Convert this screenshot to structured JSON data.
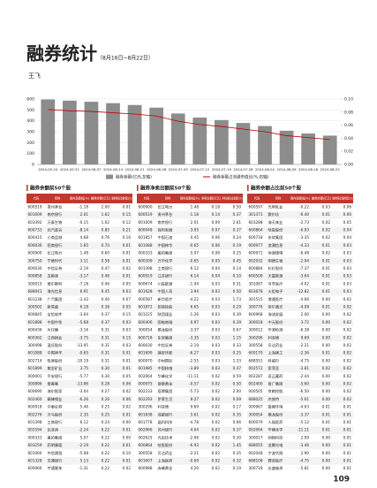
{
  "header": {
    "title": "融券统计",
    "subtitle": "（8月16日~8月22日）",
    "author": "王飞"
  },
  "chart_data": {
    "type": "bar",
    "x": [
      "2024-05-24",
      "2024-05-31",
      "2024-06-07",
      "2024-06-14",
      "2024-06-21",
      "2024-06-28",
      "2024-07-05",
      "2024-07-12",
      "2024-07-19",
      "2024-07-26",
      "2024-08-02",
      "2024-08-09",
      "2024-08-16",
      "2024-08-22"
    ],
    "series": [
      {
        "name": "融券余额(亿元,左轴)",
        "color": "#8c8c8c",
        "values": [
          596,
          585,
          575,
          562,
          545,
          521,
          467,
          430,
          407,
          380,
          352,
          309,
          284,
          264
        ]
      },
      {
        "name": "融券余额占流通市值比(%,右轴)",
        "color": "#c00000",
        "axis": "y2",
        "values": [
          0.084,
          0.082,
          0.081,
          0.079,
          0.077,
          0.074,
          0.066,
          0.061,
          0.058,
          0.054,
          0.05,
          0.044,
          0.041,
          0.038
        ]
      }
    ],
    "ylim": [
      0,
      600
    ],
    "yticks": [
      0,
      100,
      200,
      300,
      400,
      500,
      600
    ],
    "y2lim": [
      0,
      0.1
    ],
    "y2ticks": [
      {
        "value": 0,
        "label": "0.00"
      },
      {
        "value": 0.02,
        "label": "0.02"
      },
      {
        "value": 0.04,
        "label": "0.04"
      },
      {
        "value": 0.06,
        "label": "0.06"
      },
      {
        "value": 0.08,
        "label": "0.08"
      },
      {
        "value": 0.1,
        "label": "0.10"
      }
    ],
    "grid": true
  },
  "tables": [
    {
      "title": "融券余额前50个股",
      "columns": [
        "代码",
        "简称",
        "周内涨跌幅(%)",
        "融券余额(亿元)",
        "融券余额占流通市值比(%)"
      ],
      "rows": [
        [
          "600519",
          "贵州茅台",
          "-1.18",
          "2.00",
          "0.01"
        ],
        [
          "601009",
          "南京银行",
          "2.01",
          "1.62",
          "0.15"
        ],
        [
          "603392",
          "万泰生物",
          "-0.15",
          "1.02",
          "0.12"
        ],
        [
          "600733",
          "北汽蓝谷",
          "-8.14",
          "0.85",
          "0.21"
        ],
        [
          "600415",
          "小商品城",
          "4.68",
          "0.76",
          "0.16"
        ],
        [
          "600036",
          "招商银行",
          "1.65",
          "0.70",
          "0.01"
        ],
        [
          "600900",
          "长江电力",
          "1.48",
          "0.60",
          "0.01"
        ],
        [
          "300750",
          "宁德时代",
          "3.11",
          "0.58",
          "0.01"
        ],
        [
          "600030",
          "中信证券",
          "-2.19",
          "0.47",
          "0.02"
        ],
        [
          "000858",
          "五粮液",
          "-3.17",
          "0.46",
          "0.01"
        ],
        [
          "300015",
          "爱尔眼科",
          "-7.18",
          "0.46",
          "0.05"
        ],
        [
          "688041",
          "海光信息",
          "6.91",
          "0.45",
          "0.03"
        ],
        [
          "601238",
          "广汽集团",
          "-3.43",
          "0.40",
          "0.07"
        ],
        [
          "300502",
          "新易盛",
          "6.18",
          "0.38",
          "0.05"
        ],
        [
          "600845",
          "宝信软件",
          "-3.04",
          "0.37",
          "0.15"
        ],
        [
          "601888",
          "中国中免",
          "-5.68",
          "0.37",
          "0.03"
        ],
        [
          "600436",
          "片仔癀",
          "-3.16",
          "0.31",
          "0.03"
        ],
        [
          "600362",
          "江西铜业",
          "-3.75",
          "0.31",
          "0.15"
        ],
        [
          "300498",
          "温氏股份",
          "-13.95",
          "0.31",
          "0.03"
        ],
        [
          "601088",
          "中国神华",
          "-0.65",
          "0.31",
          "0.01"
        ],
        [
          "002714",
          "牧原股份",
          "-10.19",
          "0.31",
          "0.01"
        ],
        [
          "601899",
          "紫金矿业",
          "3.75",
          "0.30",
          "0.01"
        ],
        [
          "000001",
          "平安银行",
          "-5.77",
          "0.30",
          "0.05"
        ],
        [
          "300896",
          "爱美客",
          "-13.86",
          "0.28",
          "0.06"
        ],
        [
          "600690",
          "海尔智家",
          "-3.04",
          "0.27",
          "0.02"
        ],
        [
          "002460",
          "赣锋锂业",
          "-6.26",
          "0.26",
          "0.06"
        ],
        [
          "600918",
          "中泰证券",
          "5.46",
          "0.25",
          "0.02"
        ],
        [
          "002276",
          "万马股份",
          "2.35",
          "0.25",
          "0.01"
        ],
        [
          "601398",
          "工商银行",
          "6.12",
          "0.24",
          "0.00"
        ],
        [
          "002594",
          "比亚迪",
          "-2.24",
          "0.22",
          "0.01"
        ],
        [
          "000333",
          "美的集团",
          "5.07",
          "0.22",
          "0.00"
        ],
        [
          "603259",
          "药明康德",
          "-2.19",
          "0.22",
          "0.01"
        ],
        [
          "601066",
          "中信建投",
          "-5.08",
          "0.22",
          "0.10"
        ],
        [
          "601328",
          "交通银行",
          "5.13",
          "0.22",
          "0.01"
        ],
        [
          "600066",
          "宇通客车",
          "-1.31",
          "0.22",
          "0.02"
        ]
      ]
    },
    {
      "title": "融券净卖出额前50个股",
      "columns": [
        "代码",
        "简称",
        "周内涨跌幅(%)",
        "净卖出额(亿元)",
        "净卖出额占成交额比(%)"
      ],
      "rows": [
        [
          "600900",
          "长江电力",
          "1.48",
          "0.18",
          "0.50"
        ],
        [
          "600519",
          "贵州茅台",
          "-1.18",
          "0.14",
          "0.37"
        ],
        [
          "601009",
          "南京银行",
          "2.01",
          "0.09",
          "2.61"
        ],
        [
          "600048",
          "保利发展",
          "-3.05",
          "0.07",
          "0.37"
        ],
        [
          "601857",
          "中国石油",
          "0.45",
          "0.06",
          "0.24"
        ],
        [
          "601088",
          "中国神华",
          "-0.65",
          "0.06",
          "0.19"
        ],
        [
          "000333",
          "美的集团",
          "5.07",
          "0.06",
          "0.25"
        ],
        [
          "600309",
          "万华化学",
          "-0.65",
          "0.05",
          "0.45"
        ],
        [
          "601398",
          "工商银行",
          "6.12",
          "0.04",
          "0.14"
        ],
        [
          "600919",
          "江苏银行",
          "6.14",
          "0.04",
          "0.10"
        ],
        [
          "600674",
          "川投能源",
          "-1.94",
          "0.03",
          "0.31"
        ],
        [
          "601628",
          "中国人寿",
          "3.94",
          "0.03",
          "0.50"
        ],
        [
          "600587",
          "新华医疗",
          "-4.22",
          "0.03",
          "1.73"
        ],
        [
          "601872",
          "招商轮船",
          "6.65",
          "0.03",
          "0.29"
        ],
        [
          "601225",
          "陕西煤业",
          "-1.26",
          "0.03",
          "0.39"
        ],
        [
          "600406",
          "国电南瑞",
          "0.97",
          "0.03",
          "0.39"
        ],
        [
          "300054",
          "鼎龙股份",
          "-3.37",
          "0.03",
          "0.67"
        ],
        [
          "600718",
          "东软集团",
          "-3.35",
          "0.03",
          "1.15"
        ],
        [
          "600030",
          "中信证券",
          "-2.19",
          "0.03",
          "0.33"
        ],
        [
          "601699",
          "潞安环能",
          "-6.27",
          "0.03",
          "0.25"
        ],
        [
          "600970",
          "中材国际",
          "-2.55",
          "0.03",
          "1.33"
        ],
        [
          "601985",
          "中国核电",
          "-3.89",
          "0.03",
          "0.47"
        ],
        [
          "002064",
          "华峰化学",
          "-11.11",
          "0.02",
          "0.59"
        ],
        [
          "000975",
          "银泰黄金",
          "-0.57",
          "0.02",
          "0.50"
        ],
        [
          "002233",
          "塔牌集团",
          "-5.73",
          "0.02",
          "2.00"
        ],
        [
          "002293",
          "罗莱生活",
          "8.27",
          "0.02",
          "0.09"
        ],
        [
          "300296",
          "利亚德",
          "9.69",
          "0.02",
          "0.17"
        ],
        [
          "601838",
          "成都银行",
          "5.61",
          "0.02",
          "0.35"
        ],
        [
          "601778",
          "晶科科技",
          "-4.78",
          "0.02",
          "0.66"
        ],
        [
          "002966",
          "苏州银行",
          "4.04",
          "0.02",
          "0.37"
        ],
        [
          "002625",
          "光启技术",
          "-2.06",
          "0.02",
          "0.30"
        ],
        [
          "600864",
          "哈投股份",
          "-6.93",
          "0.02",
          "1.45"
        ],
        [
          "300558",
          "贝达药业",
          "-2.21",
          "0.02",
          "0.35"
        ],
        [
          "601607",
          "上海医药",
          "-0.69",
          "0.02",
          "0.32"
        ],
        [
          "600988",
          "赤峰黄金",
          "4.20",
          "0.02",
          "0.19"
        ]
      ]
    },
    {
      "title": "融券余额占比前50个股",
      "columns": [
        "代码",
        "简称",
        "周内涨跌幅(%)",
        "融券余额(亿元)",
        "融券余额占流通市值比(%)"
      ],
      "rows": [
        [
          "600597",
          "光明乳业",
          "-0.22",
          "0.03",
          "0.06"
        ],
        [
          "301371",
          "敷尔佳",
          "-6.40",
          "0.01",
          "0.06"
        ],
        [
          "603288",
          "海天味业",
          "-2.73",
          "0.02",
          "0.05"
        ],
        [
          "600864",
          "哈投股份",
          "-6.93",
          "0.02",
          "0.04"
        ],
        [
          "600718",
          "东软集团",
          "-3.35",
          "0.02",
          "0.04"
        ],
        [
          "000977",
          "浪潮信息",
          "-4.33",
          "0.01",
          "0.03"
        ],
        [
          "600971",
          "恒源煤电",
          "-6.48",
          "0.02",
          "0.03"
        ],
        [
          "002932",
          "明德生物",
          "-2.94",
          "0.01",
          "0.03"
        ],
        [
          "600884",
          "杉杉股份",
          "-7.37",
          "0.01",
          "0.03"
        ],
        [
          "600509",
          "天富能源",
          "-3.64",
          "0.01",
          "0.03"
        ],
        [
          "301087",
          "可孚医疗",
          "-4.02",
          "0.01",
          "0.03"
        ],
        [
          "603678",
          "火炬电子",
          "-12.82",
          "0.01",
          "0.03"
        ],
        [
          "301515",
          "港通医疗",
          "-4.66",
          "0.00",
          "0.02"
        ],
        [
          "300776",
          "帝尔激光",
          "-4.08",
          "0.01",
          "0.02"
        ],
        [
          "600968",
          "海油发展",
          "2.00",
          "0.00",
          "0.02"
        ],
        [
          "300018",
          "中元股份",
          "3.72",
          "0.00",
          "0.02"
        ],
        [
          "300012",
          "华测检测",
          "-6.38",
          "0.00",
          "0.02"
        ],
        [
          "300296",
          "利亚德",
          "9.69",
          "0.00",
          "0.02"
        ],
        [
          "300558",
          "贝达药业",
          "-2.21",
          "0.00",
          "0.02"
        ],
        [
          "600170",
          "上海建工",
          "-2.36",
          "0.01",
          "0.02"
        ],
        [
          "688551",
          "科威尔",
          "-4.75",
          "0.00",
          "0.02"
        ],
        [
          "002572",
          "索菲亚",
          "-3.81",
          "0.02",
          "0.02"
        ],
        [
          "002287",
          "奇正藏药",
          "-2.44",
          "0.00",
          "0.02"
        ],
        [
          "002400",
          "省广集团",
          "-5.60",
          "0.00",
          "0.02"
        ],
        [
          "000505",
          "京粮控股",
          "-6.50",
          "0.00",
          "0.02"
        ],
        [
          "688025",
          "杰普特",
          "-5.61",
          "0.00",
          "0.02"
        ],
        [
          "000967",
          "盈峰环境",
          "-4.63",
          "0.01",
          "0.01"
        ],
        [
          "300054",
          "鼎龙股份",
          "-3.37",
          "0.01",
          "0.01"
        ],
        [
          "600079",
          "人福医药",
          "-5.12",
          "0.01",
          "0.01"
        ],
        [
          "002064",
          "华峰化学",
          "-11.11",
          "0.01",
          "0.01"
        ],
        [
          "300017",
          "网宿科技",
          "2.09",
          "0.00",
          "0.01"
        ],
        [
          "688055",
          "龙腾光电",
          "-3.46",
          "0.00",
          "0.01"
        ],
        [
          "002048",
          "宁波华翔",
          "2.90",
          "0.00",
          "0.01"
        ],
        [
          "688108",
          "赛诺医疗",
          "-4.75",
          "0.00",
          "0.01"
        ],
        [
          "300718",
          "长盛轴承",
          "-5.81",
          "0.00",
          "0.01"
        ]
      ]
    }
  ],
  "page_number": "109"
}
